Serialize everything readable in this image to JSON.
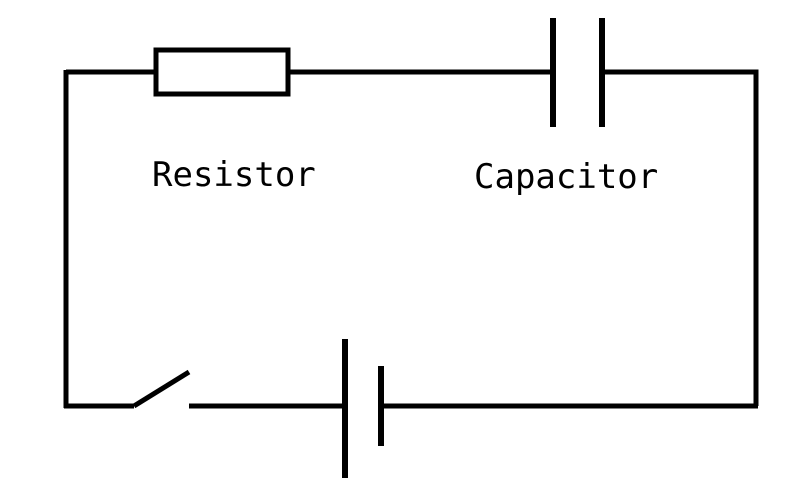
{
  "diagram": {
    "type": "circuit-schematic",
    "components": [
      {
        "kind": "resistor",
        "label": "Resistor"
      },
      {
        "kind": "capacitor",
        "label": "Capacitor"
      },
      {
        "kind": "battery",
        "label": ""
      },
      {
        "kind": "switch",
        "label": "",
        "state": "open"
      }
    ],
    "labels": {
      "resistor": "Resistor",
      "capacitor": "Capacitor"
    },
    "colors": {
      "stroke": "#000000",
      "background": "#ffffff"
    }
  }
}
